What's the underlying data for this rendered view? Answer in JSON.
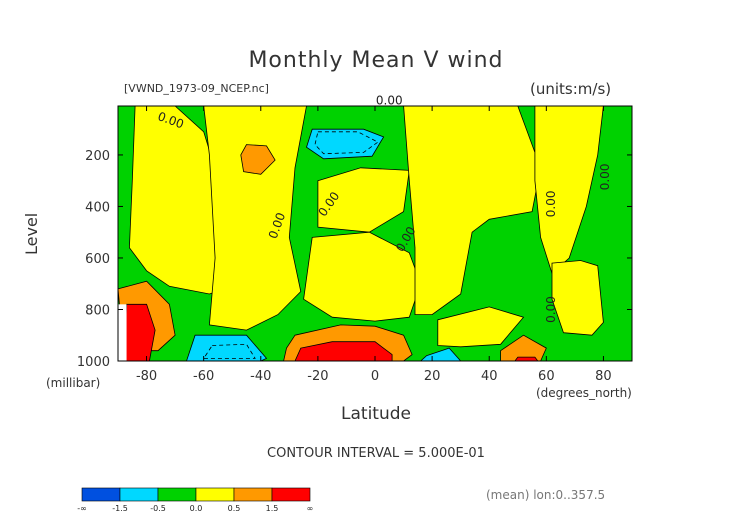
{
  "chart_data": {
    "type": "heatmap",
    "title": "Monthly Mean V wind",
    "source_label": "[VWND_1973-09_NCEP.nc]",
    "units_label": "(units:m/s)",
    "xlabel": "Latitude",
    "x_units": "(degrees_north)",
    "ylabel": "Level",
    "y_units": "(millibar)",
    "xlim": [
      -90,
      90
    ],
    "ylim": [
      1000,
      10
    ],
    "x_ticks": [
      -80,
      -60,
      -40,
      -20,
      0,
      20,
      40,
      60,
      80
    ],
    "y_ticks": [
      200,
      400,
      600,
      800,
      1000
    ],
    "contour_label": "0.00",
    "contour_interval_text": "CONTOUR INTERVAL = 5.000E-01",
    "mean_text": "(mean) lon:0..357.5",
    "colorbar": {
      "colors": [
        "#0050e0",
        "#00d8ff",
        "#00d200",
        "#ffff00",
        "#ff9900",
        "#ff0000"
      ],
      "labels": [
        "-∞",
        "-1.5",
        "-0.5",
        "0.0",
        "0.5",
        "1.5",
        "∞"
      ]
    },
    "regions": [
      {
        "level": -2,
        "points": [
          [
            -14,
            110
          ],
          [
            -3,
            110
          ],
          [
            -1,
            140
          ],
          [
            -4,
            200
          ],
          [
            -15,
            200
          ],
          [
            -17,
            160
          ]
        ]
      },
      {
        "level": -2,
        "points": [
          [
            -58,
            960
          ],
          [
            -48,
            960
          ],
          [
            -46,
            1000
          ],
          [
            -60,
            1000
          ]
        ]
      },
      {
        "level": -1,
        "points": [
          [
            -22,
            100
          ],
          [
            -4,
            100
          ],
          [
            3,
            130
          ],
          [
            -1,
            205
          ],
          [
            -18,
            215
          ],
          [
            -24,
            170
          ]
        ]
      },
      {
        "level": -1,
        "points": [
          [
            -63,
            900
          ],
          [
            -45,
            900
          ],
          [
            -38,
            990
          ],
          [
            -40,
            1000
          ],
          [
            -66,
            1000
          ]
        ]
      },
      {
        "level": -1,
        "points": [
          [
            18,
            980
          ],
          [
            26,
            950
          ],
          [
            30,
            1000
          ],
          [
            16,
            1000
          ]
        ]
      },
      {
        "level": 1,
        "points": [
          [
            -45,
            160
          ],
          [
            -38,
            165
          ],
          [
            -35,
            220
          ],
          [
            -40,
            275
          ],
          [
            -46,
            265
          ],
          [
            -47,
            200
          ]
        ]
      },
      {
        "level": 1,
        "points": [
          [
            -90,
            720
          ],
          [
            -80,
            690
          ],
          [
            -72,
            780
          ],
          [
            -70,
            900
          ],
          [
            -76,
            960
          ],
          [
            -88,
            960
          ]
        ]
      },
      {
        "level": 1,
        "points": [
          [
            -28,
            900
          ],
          [
            -12,
            860
          ],
          [
            0,
            865
          ],
          [
            10,
            900
          ],
          [
            13,
            975
          ],
          [
            10,
            1000
          ],
          [
            -32,
            1000
          ],
          [
            -31,
            950
          ]
        ]
      },
      {
        "level": 1,
        "points": [
          [
            44,
            960
          ],
          [
            52,
            900
          ],
          [
            60,
            950
          ],
          [
            58,
            1000
          ],
          [
            44,
            1000
          ]
        ]
      },
      {
        "level": 2,
        "points": [
          [
            -87,
            780
          ],
          [
            -80,
            780
          ],
          [
            -77,
            880
          ],
          [
            -79,
            1000
          ],
          [
            -88,
            1000
          ]
        ]
      },
      {
        "level": 2,
        "points": [
          [
            -26,
            950
          ],
          [
            -15,
            925
          ],
          [
            0,
            925
          ],
          [
            6,
            975
          ],
          [
            6,
            1000
          ],
          [
            -28,
            1000
          ]
        ]
      },
      {
        "level": 2,
        "points": [
          [
            50,
            985
          ],
          [
            56,
            985
          ],
          [
            57,
            1000
          ],
          [
            49,
            1000
          ]
        ]
      }
    ],
    "yellow_regions": [
      {
        "points": [
          [
            -84,
            10
          ],
          [
            -70,
            10
          ],
          [
            -60,
            110
          ],
          [
            -52,
            400
          ],
          [
            -45,
            560
          ],
          [
            -50,
            710
          ],
          [
            -58,
            740
          ],
          [
            -72,
            710
          ],
          [
            -80,
            650
          ],
          [
            -86,
            560
          ],
          [
            -85,
            300
          ]
        ]
      },
      {
        "points": [
          [
            -60,
            10
          ],
          [
            -24,
            10
          ],
          [
            -28,
            250
          ],
          [
            -30,
            520
          ],
          [
            -26,
            730
          ],
          [
            -34,
            820
          ],
          [
            -45,
            880
          ],
          [
            -58,
            860
          ],
          [
            -56,
            600
          ],
          [
            -58,
            200
          ]
        ]
      },
      {
        "points": [
          [
            -20,
            300
          ],
          [
            -5,
            250
          ],
          [
            12,
            260
          ],
          [
            10,
            420
          ],
          [
            -2,
            500
          ],
          [
            -20,
            480
          ]
        ]
      },
      {
        "points": [
          [
            -22,
            520
          ],
          [
            -2,
            500
          ],
          [
            12,
            580
          ],
          [
            16,
            700
          ],
          [
            12,
            830
          ],
          [
            0,
            845
          ],
          [
            -15,
            830
          ],
          [
            -25,
            760
          ]
        ]
      },
      {
        "points": [
          [
            10,
            10
          ],
          [
            50,
            10
          ],
          [
            58,
            250
          ],
          [
            55,
            420
          ],
          [
            40,
            450
          ],
          [
            34,
            500
          ],
          [
            30,
            740
          ],
          [
            20,
            820
          ],
          [
            14,
            820
          ],
          [
            14,
            560
          ],
          [
            12,
            300
          ]
        ]
      },
      {
        "points": [
          [
            22,
            840
          ],
          [
            40,
            790
          ],
          [
            52,
            830
          ],
          [
            44,
            935
          ],
          [
            30,
            945
          ],
          [
            22,
            940
          ]
        ]
      },
      {
        "points": [
          [
            56,
            10
          ],
          [
            80,
            10
          ],
          [
            78,
            200
          ],
          [
            74,
            400
          ],
          [
            68,
            600
          ],
          [
            62,
            660
          ],
          [
            58,
            520
          ],
          [
            56,
            300
          ]
        ]
      },
      {
        "points": [
          [
            62,
            620
          ],
          [
            72,
            610
          ],
          [
            78,
            630
          ],
          [
            80,
            850
          ],
          [
            76,
            900
          ],
          [
            66,
            890
          ],
          [
            62,
            760
          ]
        ]
      }
    ],
    "dashed_contours": [
      {
        "points": [
          [
            -20,
            110
          ],
          [
            -6,
            110
          ],
          [
            1,
            150
          ],
          [
            -4,
            190
          ],
          [
            -18,
            195
          ],
          [
            -21,
            160
          ]
        ]
      },
      {
        "points": [
          [
            -57,
            940
          ],
          [
            -45,
            935
          ],
          [
            -42,
            990
          ],
          [
            -60,
            990
          ]
        ]
      }
    ],
    "contour_labels": [
      {
        "x": -72,
        "y": 80,
        "angle": 20
      },
      {
        "x": -33,
        "y": 480,
        "angle": -70
      },
      {
        "x": -15,
        "y": 400,
        "angle": -55
      },
      {
        "x": 12,
        "y": 535,
        "angle": -60
      },
      {
        "x": 63,
        "y": 390,
        "angle": -90
      },
      {
        "x": 63,
        "y": 800,
        "angle": -90
      },
      {
        "x": 82,
        "y": 285,
        "angle": -90
      },
      {
        "x": 5,
        "y": 5,
        "angle": 0
      }
    ]
  }
}
